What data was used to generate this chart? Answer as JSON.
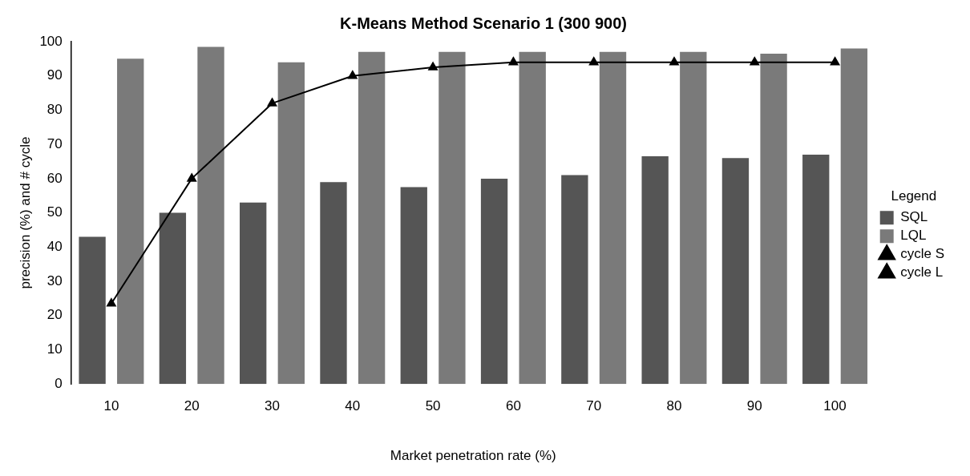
{
  "chart_data": {
    "type": "bar",
    "title": "K-Means Method Scenario 1 (300 900)",
    "xlabel": "Market penetration rate (%)",
    "ylabel": "precision (%) and # cycle",
    "categories": [
      "10",
      "20",
      "30",
      "40",
      "50",
      "60",
      "70",
      "80",
      "90",
      "100"
    ],
    "series": [
      {
        "name": "SQL",
        "color": "#555555",
        "values": [
          43,
          50,
          53,
          59,
          57.5,
          60,
          61,
          66.5,
          66,
          67
        ]
      },
      {
        "name": "LQL",
        "color": "#7a7a7a",
        "values": [
          95,
          98.5,
          94,
          97,
          97,
          97,
          97,
          97,
          96.5,
          98
        ]
      },
      {
        "name": "cycle S",
        "type": "line",
        "color": "#000000",
        "values": [
          23.5,
          60,
          82,
          90,
          92.5,
          94,
          94,
          94,
          94,
          94
        ]
      },
      {
        "name": "cycle L",
        "type": "line",
        "color": "#000000",
        "values": [
          null,
          null,
          null,
          null,
          null,
          null,
          null,
          null,
          null,
          null
        ]
      }
    ],
    "ylim": [
      0,
      100
    ],
    "yticks": [
      0,
      10,
      20,
      30,
      40,
      50,
      60,
      70,
      80,
      90,
      100
    ],
    "legend": "right",
    "legend_title": "Legend",
    "grid": false,
    "marker": "triangle",
    "line_style": "solid"
  }
}
